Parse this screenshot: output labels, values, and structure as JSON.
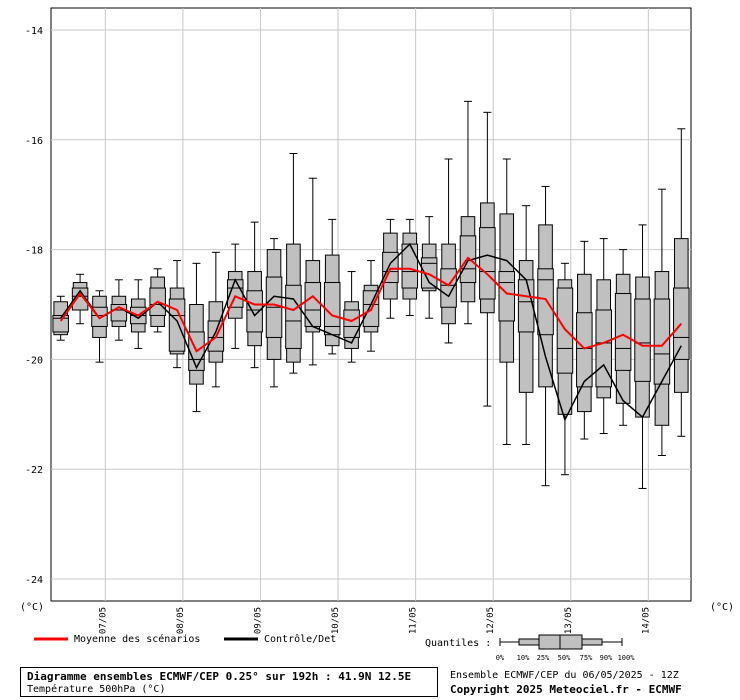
{
  "chart_data": {
    "type": "boxplot",
    "ylim": [
      -24.4,
      -13.6
    ],
    "yticks": [
      -14,
      -16,
      -18,
      -20,
      -22,
      -24
    ],
    "y_unit_left": "(°C)",
    "y_unit_right": "(°C)",
    "x_ticks": [
      {
        "label": "07/05",
        "x": 2.3
      },
      {
        "label": "08/05",
        "x": 6.3
      },
      {
        "label": "09/05",
        "x": 10.3
      },
      {
        "label": "10/05",
        "x": 14.3
      },
      {
        "label": "11/05",
        "x": 18.3
      },
      {
        "label": "12/05",
        "x": 22.3
      },
      {
        "label": "13/05",
        "x": 26.3
      },
      {
        "label": "14/05",
        "x": 30.3
      }
    ],
    "boxes": [
      {
        "x": 0,
        "p0": -19.65,
        "p10": -19.55,
        "q1": -19.5,
        "median": -19.25,
        "q3": -19.2,
        "p90": -18.95,
        "p100": -18.85
      },
      {
        "x": 1,
        "p0": -19.35,
        "p10": -19.1,
        "q1": -19.1,
        "median": -18.85,
        "q3": -18.7,
        "p90": -18.6,
        "p100": -18.45
      },
      {
        "x": 2,
        "p0": -20.05,
        "p10": -19.6,
        "q1": -19.4,
        "median": -19.2,
        "q3": -19.05,
        "p90": -18.85,
        "p100": -18.75
      },
      {
        "x": 3,
        "p0": -19.65,
        "p10": -19.4,
        "q1": -19.3,
        "median": -19.1,
        "q3": -19.0,
        "p90": -18.85,
        "p100": -18.55
      },
      {
        "x": 4,
        "p0": -19.8,
        "p10": -19.5,
        "q1": -19.35,
        "median": -19.2,
        "q3": -19.05,
        "p90": -18.9,
        "p100": -18.55
      },
      {
        "x": 5,
        "p0": -19.5,
        "p10": -19.4,
        "q1": -19.2,
        "median": -19.0,
        "q3": -18.7,
        "p90": -18.5,
        "p100": -18.35
      },
      {
        "x": 6,
        "p0": -20.15,
        "p10": -19.9,
        "q1": -19.85,
        "median": -19.2,
        "q3": -18.9,
        "p90": -18.7,
        "p100": -18.2
      },
      {
        "x": 7,
        "p0": -20.95,
        "p10": -20.45,
        "q1": -20.2,
        "median": -20.0,
        "q3": -19.5,
        "p90": -19.0,
        "p100": -18.25
      },
      {
        "x": 8,
        "p0": -20.5,
        "p10": -20.05,
        "q1": -19.85,
        "median": -19.6,
        "q3": -19.3,
        "p90": -18.95,
        "p100": -18.05
      },
      {
        "x": 9,
        "p0": -19.8,
        "p10": -19.25,
        "q1": -19.05,
        "median": -18.7,
        "q3": -18.55,
        "p90": -18.4,
        "p100": -17.9
      },
      {
        "x": 10,
        "p0": -20.15,
        "p10": -19.75,
        "q1": -19.5,
        "median": -19.1,
        "q3": -18.75,
        "p90": -18.4,
        "p100": -17.5
      },
      {
        "x": 11,
        "p0": -20.5,
        "p10": -20.0,
        "q1": -19.6,
        "median": -19.05,
        "q3": -18.5,
        "p90": -18.0,
        "p100": -17.8
      },
      {
        "x": 12,
        "p0": -20.25,
        "p10": -20.05,
        "q1": -19.8,
        "median": -19.3,
        "q3": -18.65,
        "p90": -17.9,
        "p100": -16.25
      },
      {
        "x": 13,
        "p0": -20.1,
        "p10": -19.5,
        "q1": -19.4,
        "median": -19.1,
        "q3": -18.6,
        "p90": -18.2,
        "p100": -16.7
      },
      {
        "x": 14,
        "p0": -19.9,
        "p10": -19.75,
        "q1": -19.55,
        "median": -19.4,
        "q3": -18.6,
        "p90": -18.1,
        "p100": -17.45
      },
      {
        "x": 15,
        "p0": -20.05,
        "p10": -19.8,
        "q1": -19.6,
        "median": -19.4,
        "q3": -19.1,
        "p90": -18.95,
        "p100": -18.4
      },
      {
        "x": 16,
        "p0": -19.85,
        "p10": -19.5,
        "q1": -19.4,
        "median": -19.0,
        "q3": -18.75,
        "p90": -18.65,
        "p100": -18.2
      },
      {
        "x": 17,
        "p0": -19.25,
        "p10": -18.9,
        "q1": -18.6,
        "median": -18.4,
        "q3": -18.05,
        "p90": -17.7,
        "p100": -17.45
      },
      {
        "x": 18,
        "p0": -19.2,
        "p10": -18.9,
        "q1": -18.7,
        "median": -18.4,
        "q3": -17.9,
        "p90": -17.7,
        "p100": -17.45
      },
      {
        "x": 19,
        "p0": -19.25,
        "p10": -18.75,
        "q1": -18.7,
        "median": -18.25,
        "q3": -18.15,
        "p90": -17.9,
        "p100": -17.4
      },
      {
        "x": 20,
        "p0": -19.7,
        "p10": -19.35,
        "q1": -19.05,
        "median": -18.65,
        "q3": -18.35,
        "p90": -17.9,
        "p100": -16.35
      },
      {
        "x": 21,
        "p0": -19.35,
        "p10": -18.95,
        "q1": -18.6,
        "median": -18.35,
        "q3": -17.75,
        "p90": -17.4,
        "p100": -15.3
      },
      {
        "x": 22,
        "p0": -20.85,
        "p10": -19.15,
        "q1": -18.9,
        "median": -18.4,
        "q3": -17.6,
        "p90": -17.15,
        "p100": -15.5
      },
      {
        "x": 23,
        "p0": -21.55,
        "p10": -20.05,
        "q1": -19.3,
        "median": -18.6,
        "q3": -18.4,
        "p90": -17.35,
        "p100": -16.35
      },
      {
        "x": 24,
        "p0": -21.55,
        "p10": -20.6,
        "q1": -19.5,
        "median": -18.95,
        "q3": -18.55,
        "p90": -18.2,
        "p100": -17.2
      },
      {
        "x": 25,
        "p0": -22.3,
        "p10": -20.5,
        "q1": -19.55,
        "median": -18.55,
        "q3": -18.35,
        "p90": -17.55,
        "p100": -16.85
      },
      {
        "x": 26,
        "p0": -22.1,
        "p10": -21.0,
        "q1": -20.25,
        "median": -19.8,
        "q3": -18.7,
        "p90": -18.55,
        "p100": -18.25
      },
      {
        "x": 27,
        "p0": -21.45,
        "p10": -20.95,
        "q1": -20.5,
        "median": -19.8,
        "q3": -19.15,
        "p90": -18.45,
        "p100": -17.85
      },
      {
        "x": 28,
        "p0": -21.35,
        "p10": -20.7,
        "q1": -20.5,
        "median": -19.7,
        "q3": -19.1,
        "p90": -18.55,
        "p100": -17.8
      },
      {
        "x": 29,
        "p0": -21.2,
        "p10": -20.8,
        "q1": -20.2,
        "median": -19.8,
        "q3": -18.8,
        "p90": -18.45,
        "p100": -18.0
      },
      {
        "x": 30,
        "p0": -22.35,
        "p10": -21.05,
        "q1": -20.4,
        "median": -19.7,
        "q3": -18.9,
        "p90": -18.5,
        "p100": -17.55
      },
      {
        "x": 31,
        "p0": -21.75,
        "p10": -21.2,
        "q1": -20.45,
        "median": -19.9,
        "q3": -18.9,
        "p90": -18.4,
        "p100": -16.9
      },
      {
        "x": 32,
        "p0": -21.4,
        "p10": -20.6,
        "q1": -20.0,
        "median": -19.6,
        "q3": -18.7,
        "p90": -17.8,
        "p100": -15.8
      }
    ],
    "mean_series": {
      "name": "Moyenne des scénarios",
      "color": "#ff0000",
      "values": [
        -19.3,
        -18.8,
        -19.25,
        -19.05,
        -19.2,
        -18.95,
        -19.1,
        -19.85,
        -19.6,
        -18.85,
        -19.0,
        -19.0,
        -19.1,
        -18.85,
        -19.2,
        -19.3,
        -19.1,
        -18.35,
        -18.35,
        -18.45,
        -18.65,
        -18.15,
        -18.45,
        -18.8,
        -18.85,
        -18.9,
        -19.45,
        -19.8,
        -19.7,
        -19.55,
        -19.75,
        -19.75,
        -19.35
      ]
    },
    "control_series": {
      "name": "Contrôle/Det",
      "color": "#000000",
      "values": [
        -19.25,
        -18.75,
        -19.25,
        -19.05,
        -19.25,
        -18.95,
        -19.3,
        -20.15,
        -19.5,
        -18.55,
        -19.2,
        -18.85,
        -18.9,
        -19.4,
        -19.55,
        -19.7,
        -19.0,
        -18.25,
        -17.9,
        -18.6,
        -18.85,
        -18.2,
        -18.1,
        -18.2,
        -18.55,
        -19.95,
        -21.1,
        -20.4,
        -20.1,
        -20.75,
        -21.05,
        -20.4,
        -19.75
      ]
    },
    "legend": {
      "mean_label": "Moyenne des scénarios",
      "control_label": "Contrôle/Det"
    },
    "quantiles": {
      "label": "Quantiles :",
      "items": [
        "0%",
        "10%",
        "25%",
        "50%",
        "75%",
        "90%",
        "100%"
      ]
    },
    "grid": true
  },
  "title": {
    "main": "Diagramme ensembles ECMWF/CEP 0.25° sur 192h : 41.9N 12.5E",
    "sub": "Température 500hPa (°C)"
  },
  "info": {
    "run": "Ensemble ECMWF/CEP du 06/05/2025 - 12Z",
    "copyright": "Copyright 2025 Meteociel.fr - ECMWF"
  },
  "colors": {
    "box_fill": "#c0c0c0",
    "grid": "#c8c8c8",
    "mean": "#ff0000",
    "control": "#000000"
  }
}
